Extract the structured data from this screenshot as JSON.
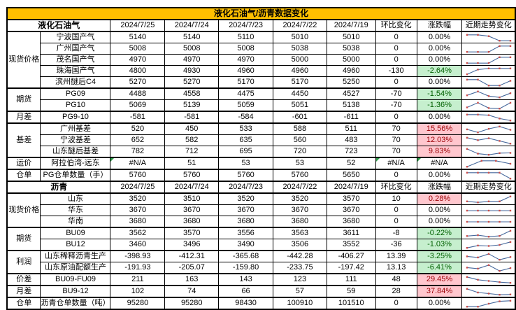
{
  "page": {
    "title": "液化石油气/沥青数据变化"
  },
  "colors": {
    "title_bg": "#FFC000",
    "grid": "#000000",
    "up_bg": "#FFC7CE",
    "up_text": "#9C0006",
    "down_bg": "#C6EFCE",
    "down_text": "#006100",
    "spark_line": "#44679B",
    "spark_marker": "#CB4C49",
    "na_triangle": "#2E9E4B"
  },
  "chart_data": [
    {
      "type": "table",
      "label": "液化石油气",
      "dates": [
        "2024/7/25",
        "2024/7/24",
        "2024/7/23",
        "2024/7/22",
        "2024/7/19"
      ],
      "change_label": "环比变化",
      "pct_label": "涨跌幅",
      "trend_label": "近期走势变化",
      "trend_note": "sparkline of row values, left=2024/7/25",
      "groups": [
        {
          "category": "现货价格",
          "rows": [
            {
              "label": "宁波国产气",
              "values": [
                "5140",
                "5140",
                "5110",
                "5010",
                "5010"
              ],
              "change": "0",
              "pct": "0.00%"
            },
            {
              "label": "广州国产气",
              "values": [
                "5008",
                "5008",
                "5008",
                "5038",
                "5038"
              ],
              "change": "0",
              "pct": "0.00%"
            },
            {
              "label": "茂名国产气",
              "values": [
                "4970",
                "4970",
                "4970",
                "5000",
                "5000"
              ],
              "change": "0",
              "pct": "0.00%"
            },
            {
              "label": "珠海国产气",
              "values": [
                "4800",
                "4930",
                "4960",
                "4960",
                "4960"
              ],
              "change": "-130",
              "pct": "-2.64%"
            },
            {
              "label": "滨州醚后C4",
              "values": [
                "5270",
                "5270",
                "5170",
                "5170",
                "5250"
              ],
              "change": "0",
              "pct": "0.00%"
            }
          ]
        },
        {
          "category": "期货",
          "rows": [
            {
              "label": "PG09",
              "values": [
                "4488",
                "4558",
                "4475",
                "4450",
                "4527"
              ],
              "change": "-70",
              "pct": "-1.54%"
            },
            {
              "label": "PG10",
              "values": [
                "5069",
                "5139",
                "5059",
                "5051",
                "5138"
              ],
              "change": "-70",
              "pct": "-1.36%"
            }
          ]
        },
        {
          "category": "月差",
          "rows": [
            {
              "label": "PG9-10",
              "values": [
                "-581",
                "-581",
                "-584",
                "-601",
                "-611"
              ],
              "change": "0",
              "pct": "0.00%"
            }
          ]
        },
        {
          "category": "基差",
          "rows": [
            {
              "label": "广州基差",
              "values": [
                "520",
                "450",
                "533",
                "588",
                "511"
              ],
              "change": "70",
              "pct": "15.56%"
            },
            {
              "label": "宁波基差",
              "values": [
                "652",
                "582",
                "635",
                "560",
                "483"
              ],
              "change": "70",
              "pct": "12.03%"
            },
            {
              "label": "山东醚后基差",
              "values": [
                "782",
                "712",
                "695",
                "720",
                "723"
              ],
              "change": "70",
              "pct": "9.83%"
            }
          ]
        },
        {
          "category": "运价",
          "rows": [
            {
              "label": "阿拉伯湾-远东",
              "values": [
                "#N/A",
                "51",
                "53",
                "53",
                "52"
              ],
              "change": "#N/A",
              "pct": "#N/A"
            }
          ]
        },
        {
          "category": "仓单",
          "rows": [
            {
              "label": "PG仓单数量（手）",
              "values": [
                "5760",
                "5760",
                "5760",
                "5760",
                "5650"
              ],
              "change": "0",
              "pct": "0.00%"
            }
          ]
        }
      ]
    },
    {
      "type": "table",
      "label": "沥青",
      "dates": [
        "2024/7/25",
        "2024/7/24",
        "2024/7/23",
        "2024/7/22",
        "2024/7/19"
      ],
      "change_label": "环比变化",
      "pct_label": "涨跌幅",
      "trend_label": "近期走势变化",
      "trend_note": "sparkline of row values, left=2024/7/25",
      "groups": [
        {
          "category": "现货价格",
          "rows": [
            {
              "label": "山东",
              "values": [
                "3520",
                "3510",
                "3520",
                "3520",
                "3570"
              ],
              "change": "10",
              "pct": "0.28%"
            },
            {
              "label": "华东",
              "values": [
                "3670",
                "3670",
                "3670",
                "3670",
                "3670"
              ],
              "change": "0",
              "pct": "0.00%"
            },
            {
              "label": "华南",
              "values": [
                "3680",
                "3680",
                "3680",
                "3680",
                "3680"
              ],
              "change": "0",
              "pct": "0.00%"
            }
          ]
        },
        {
          "category": "期货",
          "rows": [
            {
              "label": "BU09",
              "values": [
                "3562",
                "3570",
                "3556",
                "3563",
                "3611"
              ],
              "change": "-8",
              "pct": "-0.22%"
            },
            {
              "label": "BU12",
              "values": [
                "3460",
                "3496",
                "3490",
                "3506",
                "3552"
              ],
              "change": "-36",
              "pct": "-1.03%"
            }
          ]
        },
        {
          "category": "利润",
          "rows": [
            {
              "label": "山东稀释沥青生产",
              "values": [
                "-398.93",
                "-412.31",
                "-365.68",
                "-442.28",
                "-406.27"
              ],
              "change": "13.39",
              "pct": "-3.25%"
            },
            {
              "label": "山东原油配额生产",
              "values": [
                "-191.93",
                "-205.07",
                "-159.80",
                "-233.75",
                "-197.42"
              ],
              "change": "13.13",
              "pct": "-6.41%"
            }
          ]
        },
        {
          "category": "价差",
          "rows": [
            {
              "label": "BU09-FU09",
              "values": [
                "211",
                "163",
                "143",
                "123",
                "111"
              ],
              "change": "48",
              "pct": "29.45%"
            }
          ]
        },
        {
          "category": "月差",
          "rows": [
            {
              "label": "BU9-12",
              "values": [
                "102",
                "74",
                "66",
                "57",
                "59"
              ],
              "change": "28",
              "pct": "37.84%"
            }
          ]
        },
        {
          "category": "仓单",
          "rows": [
            {
              "label": "沥青仓单数量（吨）",
              "values": [
                "95280",
                "95280",
                "98430",
                "100910",
                "101510"
              ],
              "change": "0",
              "pct": "0.00%"
            }
          ]
        }
      ]
    }
  ]
}
